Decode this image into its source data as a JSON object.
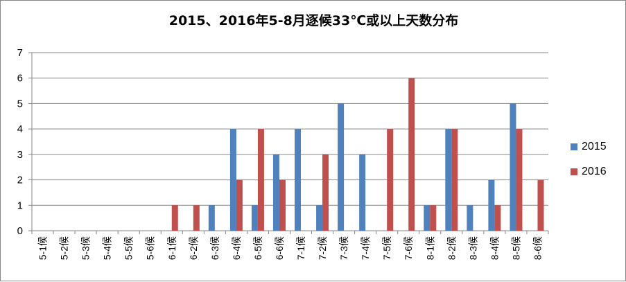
{
  "chart_data": {
    "type": "bar",
    "title": "2015、2016年5-8月逐候33℃或以上天数分布",
    "categories": [
      "5-1候",
      "5-2候",
      "5-3候",
      "5-4候",
      "5-5候",
      "5-6候",
      "6-1候",
      "6-2候",
      "6-3候",
      "6-4候",
      "6-5候",
      "6-6候",
      "7-1候",
      "7-2候",
      "7-3候",
      "7-4候",
      "7-5候",
      "7-6候",
      "8-1候",
      "8-2候",
      "8-3候",
      "8-4候",
      "8-5候",
      "8-6候"
    ],
    "series": [
      {
        "name": "2015",
        "color": "#4F81BD",
        "values": [
          0,
          0,
          0,
          0,
          0,
          0,
          0,
          0,
          1,
          4,
          1,
          3,
          4,
          1,
          5,
          3,
          0,
          0,
          1,
          4,
          1,
          2,
          5,
          0
        ]
      },
      {
        "name": "2016",
        "color": "#C0504D",
        "values": [
          0,
          0,
          0,
          0,
          0,
          0,
          1,
          1,
          0,
          2,
          4,
          2,
          0,
          3,
          0,
          0,
          4,
          6,
          1,
          4,
          0,
          1,
          4,
          2
        ]
      }
    ],
    "ylim": [
      0,
      7
    ],
    "yticks": [
      "0",
      "1",
      "2",
      "3",
      "4",
      "5",
      "6",
      "7"
    ],
    "grid": true,
    "legend_position": "right"
  }
}
